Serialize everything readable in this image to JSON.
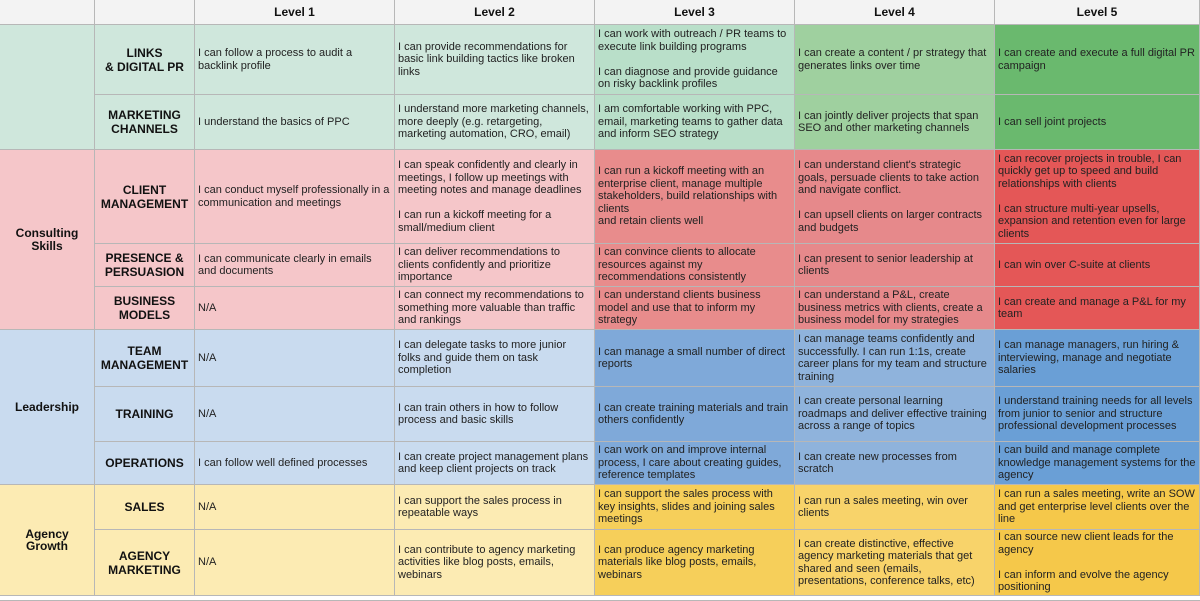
{
  "headers": [
    "",
    "",
    "Level 1",
    "Level 2",
    "Level 3",
    "Level 4",
    "Level 5"
  ],
  "colors": {
    "header_bg": "#f3f3f3",
    "teal_light": "#cfe7dc",
    "teal_mid": "#b9dfc9",
    "green_l4": "#9fd09f",
    "green_l5": "#6ab96e",
    "pink_light": "#f5c6c9",
    "red_l3": "#e88c8c",
    "red_l4": "#e6898b",
    "red_l5": "#e45757",
    "blue_light": "#c9dbef",
    "blue_l3": "#7fa9d9",
    "blue_l4": "#8fb3dc",
    "blue_l5": "#6a9fd6",
    "yellow_light": "#fcebb3",
    "yellow_l3": "#f6cf5a",
    "yellow_l4": "#f8d36a",
    "yellow_l5": "#f5c84a"
  },
  "categories": [
    {
      "name": "",
      "color": "teal_light"
    },
    {
      "name": "Consulting\nSkills",
      "color": "pink_light"
    },
    {
      "name": "Leadership",
      "color": "blue_light"
    },
    {
      "name": "Agency\nGrowth",
      "color": "yellow_light"
    }
  ],
  "rows": [
    {
      "label": "LINKS\n& DIGITAL PR",
      "colors": [
        "teal_light",
        "teal_light",
        "teal_light",
        "teal_mid",
        "green_l4",
        "green_l5"
      ],
      "cells": [
        "I can follow a process to audit a backlink profile",
        "I can provide recommendations for basic link building tactics like broken links",
        "I can work with outreach / PR teams to execute link building programs\n\nI can diagnose and provide guidance on risky backlink profiles",
        "I can create a content / pr strategy that generates links over time",
        "I can create and execute a full digital PR campaign"
      ]
    },
    {
      "label": "MARKETING\nCHANNELS",
      "colors": [
        "teal_light",
        "teal_light",
        "teal_light",
        "teal_mid",
        "green_l4",
        "green_l5"
      ],
      "cells": [
        "I understand the basics of PPC",
        "I understand more marketing channels, more deeply (e.g. retargeting, marketing automation, CRO, email)",
        "I am comfortable working with PPC, email, marketing teams to gather data and inform SEO strategy",
        "I can jointly deliver projects that span SEO and other marketing channels",
        "I can sell joint projects"
      ]
    },
    {
      "label": "CLIENT\nMANAGEMENT",
      "colors": [
        "pink_light",
        "pink_light",
        "pink_light",
        "red_l3",
        "red_l4",
        "red_l5"
      ],
      "cells": [
        "I can conduct myself professionally in a communication and meetings",
        "I can speak confidently and clearly in meetings, I follow up meetings with meeting notes and manage deadlines\n\nI can run a kickoff meeting for a small/medium client",
        "I can run a kickoff meeting with an enterprise client, manage multiple stakeholders, build relationships with clients\nand retain clients well",
        "I can understand client's strategic goals, persuade clients to take action and navigate conflict.\n\nI can upsell clients on larger contracts and budgets",
        "I can recover projects in trouble, I can quickly get up to speed and build relationships with clients\n\nI can structure multi-year upsells, expansion and retention even for large clients"
      ]
    },
    {
      "label": "PRESENCE &\nPERSUASION",
      "colors": [
        "pink_light",
        "pink_light",
        "pink_light",
        "red_l3",
        "red_l4",
        "red_l5"
      ],
      "cells": [
        "I can communicate clearly in emails and documents",
        "I can deliver recommendations to clients confidently and prioritize importance",
        "I can convince clients to allocate resources against my recommendations consistently",
        "I can present to senior leadership at clients",
        "I can win over C-suite at clients"
      ]
    },
    {
      "label": "BUSINESS\nMODELS",
      "colors": [
        "pink_light",
        "pink_light",
        "pink_light",
        "red_l3",
        "red_l4",
        "red_l5"
      ],
      "cells": [
        "N/A",
        "I can connect my recommendations to something more valuable than traffic and rankings",
        "I can understand clients business model and use that to inform my strategy",
        "I can understand a P&L, create business metrics with clients, create a business model for my strategies",
        "I can create and manage a P&L for my team"
      ]
    },
    {
      "label": "TEAM\nMANAGEMENT",
      "colors": [
        "blue_light",
        "blue_light",
        "blue_light",
        "blue_l3",
        "blue_l4",
        "blue_l5"
      ],
      "cells": [
        "N/A",
        "I can delegate tasks to more junior folks and guide them on task completion",
        "I can manage a small number of direct reports",
        "I can manage teams confidently and successfully. I can run 1:1s, create career plans for my team and structure training",
        "I can manage managers, run hiring & interviewing, manage and negotiate salaries"
      ]
    },
    {
      "label": "TRAINING",
      "colors": [
        "blue_light",
        "blue_light",
        "blue_light",
        "blue_l3",
        "blue_l4",
        "blue_l5"
      ],
      "cells": [
        "N/A",
        "I can train others in how to follow process and basic skills",
        "I can create training materials and train others confidently",
        "I can create personal learning roadmaps and deliver effective training across a range of topics",
        "I understand training needs for all levels from junior to senior and structure professional development processes"
      ]
    },
    {
      "label": "OPERATIONS",
      "colors": [
        "blue_light",
        "blue_light",
        "blue_light",
        "blue_l3",
        "blue_l4",
        "blue_l5"
      ],
      "cells": [
        "I can follow well defined processes",
        "I can create project management plans and keep client projects on track",
        "I can work on and improve internal process, I care about creating guides, reference templates",
        "I can create new processes from scratch",
        "I can build and manage complete knowledge management systems for the agency"
      ]
    },
    {
      "label": "SALES",
      "colors": [
        "yellow_light",
        "yellow_light",
        "yellow_light",
        "yellow_l3",
        "yellow_l4",
        "yellow_l5"
      ],
      "cells": [
        "N/A",
        "I can support the sales process in repeatable ways",
        "I can support the sales process with key insights, slides and joining sales meetings",
        "I can run a sales meeting, win over clients",
        "I can run a sales meeting, write an SOW and get enterprise level clients over the line"
      ]
    },
    {
      "label": "AGENCY\nMARKETING",
      "colors": [
        "yellow_light",
        "yellow_light",
        "yellow_light",
        "yellow_l3",
        "yellow_l4",
        "yellow_l5"
      ],
      "cells": [
        "N/A",
        "I can contribute to agency marketing activities like blog posts, emails, webinars",
        "I can produce agency marketing materials like blog posts, emails, webinars",
        "I can create distinctive, effective agency marketing materials that get shared and seen (emails, presentations, conference talks, etc)",
        "I can source new client leads for the agency\n\nI can inform and evolve the agency positioning"
      ]
    }
  ]
}
